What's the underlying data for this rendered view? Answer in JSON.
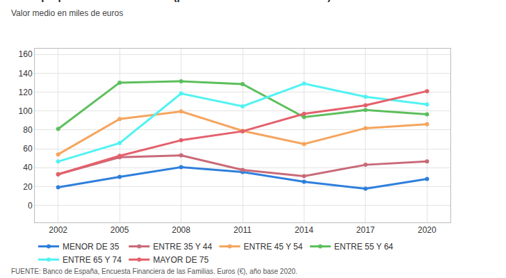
{
  "chart_data": {
    "type": "line",
    "title": "Otras propiedades inmobiliarias (por edad del cabeza de familia)",
    "subtitle": "Valor medio en miles de euros",
    "source": "FUENTE: Banco de España, Encuesta Financiera de las Familias. Euros (€), año base 2020.",
    "categories": [
      "2002",
      "2005",
      "2008",
      "2011",
      "2014",
      "2017",
      "2020"
    ],
    "series": [
      {
        "name": "MENOR DE 35",
        "color": "#2e7fdc",
        "values": [
          19.2,
          30.2,
          40.5,
          35.4,
          25,
          17.7,
          28
        ]
      },
      {
        "name": "ENTRE 35 Y 44",
        "color": "#c96a78",
        "values": [
          33,
          51,
          53,
          37.6,
          31,
          43,
          46.5
        ]
      },
      {
        "name": "ENTRE 45 Y 54",
        "color": "#f5a55e",
        "values": [
          54,
          91.5,
          99.5,
          79,
          65,
          81.8,
          86
        ]
      },
      {
        "name": "ENTRE 55 Y 64",
        "color": "#5cbf5c",
        "values": [
          81,
          130,
          131.5,
          128.5,
          93.5,
          101,
          96.5
        ]
      },
      {
        "name": "ENTRE 65 Y 74",
        "color": "#52f2f2",
        "values": [
          46.5,
          66,
          118.5,
          105,
          129,
          115,
          107
        ]
      },
      {
        "name": "MAYOR DE 75",
        "color": "#e4606c",
        "values": [
          33,
          52.5,
          69,
          78.5,
          97,
          106,
          121
        ]
      }
    ],
    "ylim": [
      -18,
      166
    ],
    "yticks": [
      0,
      20,
      40,
      60,
      80,
      100,
      120,
      140,
      160
    ],
    "grid": true,
    "marker": "circle",
    "legend": "bottom"
  }
}
